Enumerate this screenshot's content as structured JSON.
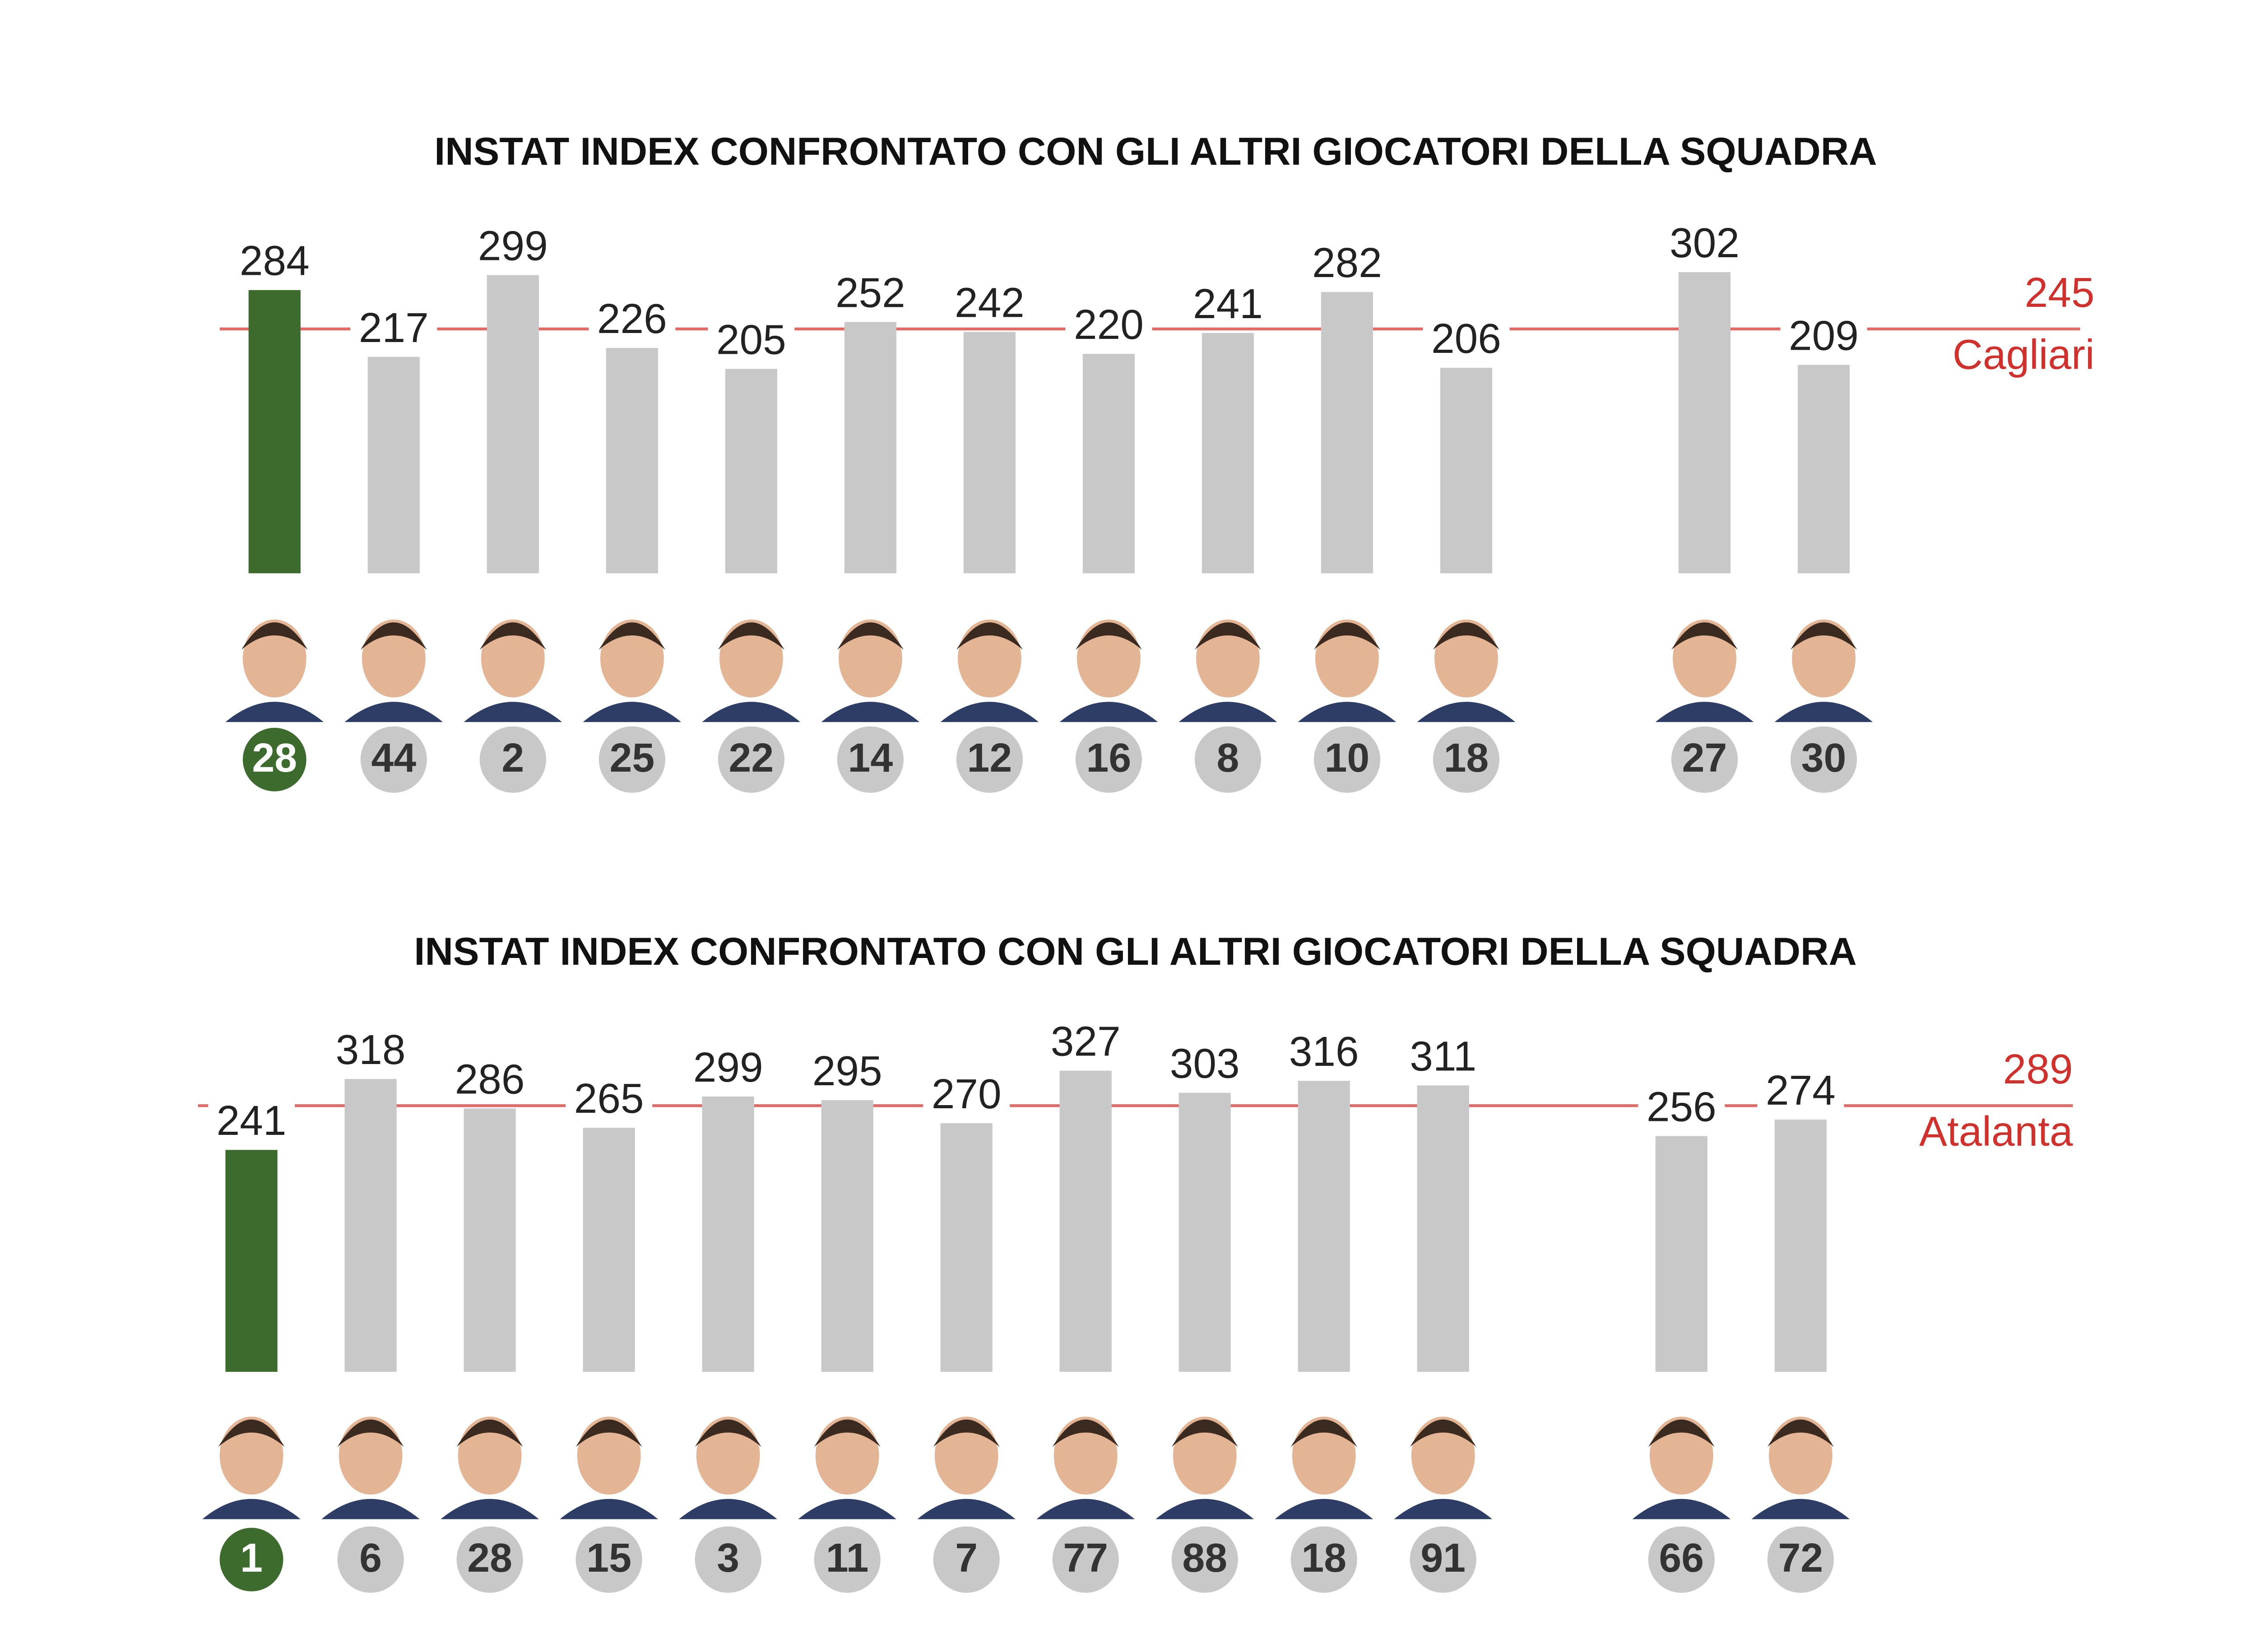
{
  "chart_data": [
    {
      "type": "bar",
      "title": "INSTAT INDEX CONFRONTATO CON GLI ALTRI GIOCATORI DELLA SQUADRA",
      "categories": [
        "28",
        "44",
        "2",
        "25",
        "22",
        "14",
        "12",
        "16",
        "8",
        "10",
        "18",
        null,
        "27",
        "30"
      ],
      "values": [
        284,
        217,
        299,
        226,
        205,
        252,
        242,
        220,
        241,
        282,
        206,
        null,
        302,
        209
      ],
      "colors": [
        "#3d6b2e",
        "#c8c8c8",
        "#c8c8c8",
        "#c8c8c8",
        "#c8c8c8",
        "#c8c8c8",
        "#c8c8c8",
        "#c8c8c8",
        "#c8c8c8",
        "#c8c8c8",
        "#c8c8c8",
        null,
        "#c8c8c8",
        "#c8c8c8"
      ],
      "ylim": [
        0,
        362
      ],
      "reference": {
        "value": 245,
        "label": "Cagliari",
        "color": "#e06a66"
      }
    },
    {
      "type": "bar",
      "title": "INSTAT INDEX CONFRONTATO CON GLI ALTRI GIOCATORI DELLA SQUADRA",
      "categories": [
        "1",
        "6",
        "28",
        "15",
        "3",
        "11",
        "7",
        "77",
        "88",
        "18",
        "91",
        null,
        "66",
        "72"
      ],
      "values": [
        241,
        318,
        286,
        265,
        299,
        295,
        270,
        327,
        303,
        316,
        311,
        null,
        256,
        274
      ],
      "colors": [
        "#3d6b2e",
        "#c8c8c8",
        "#c8c8c8",
        "#c8c8c8",
        "#c8c8c8",
        "#c8c8c8",
        "#c8c8c8",
        "#c8c8c8",
        "#c8c8c8",
        "#c8c8c8",
        "#c8c8c8",
        null,
        "#c8c8c8",
        "#c8c8c8"
      ],
      "ylim": [
        0,
        392
      ],
      "reference": {
        "value": 289,
        "label": "Atalanta",
        "color": "#e06a66"
      }
    }
  ]
}
